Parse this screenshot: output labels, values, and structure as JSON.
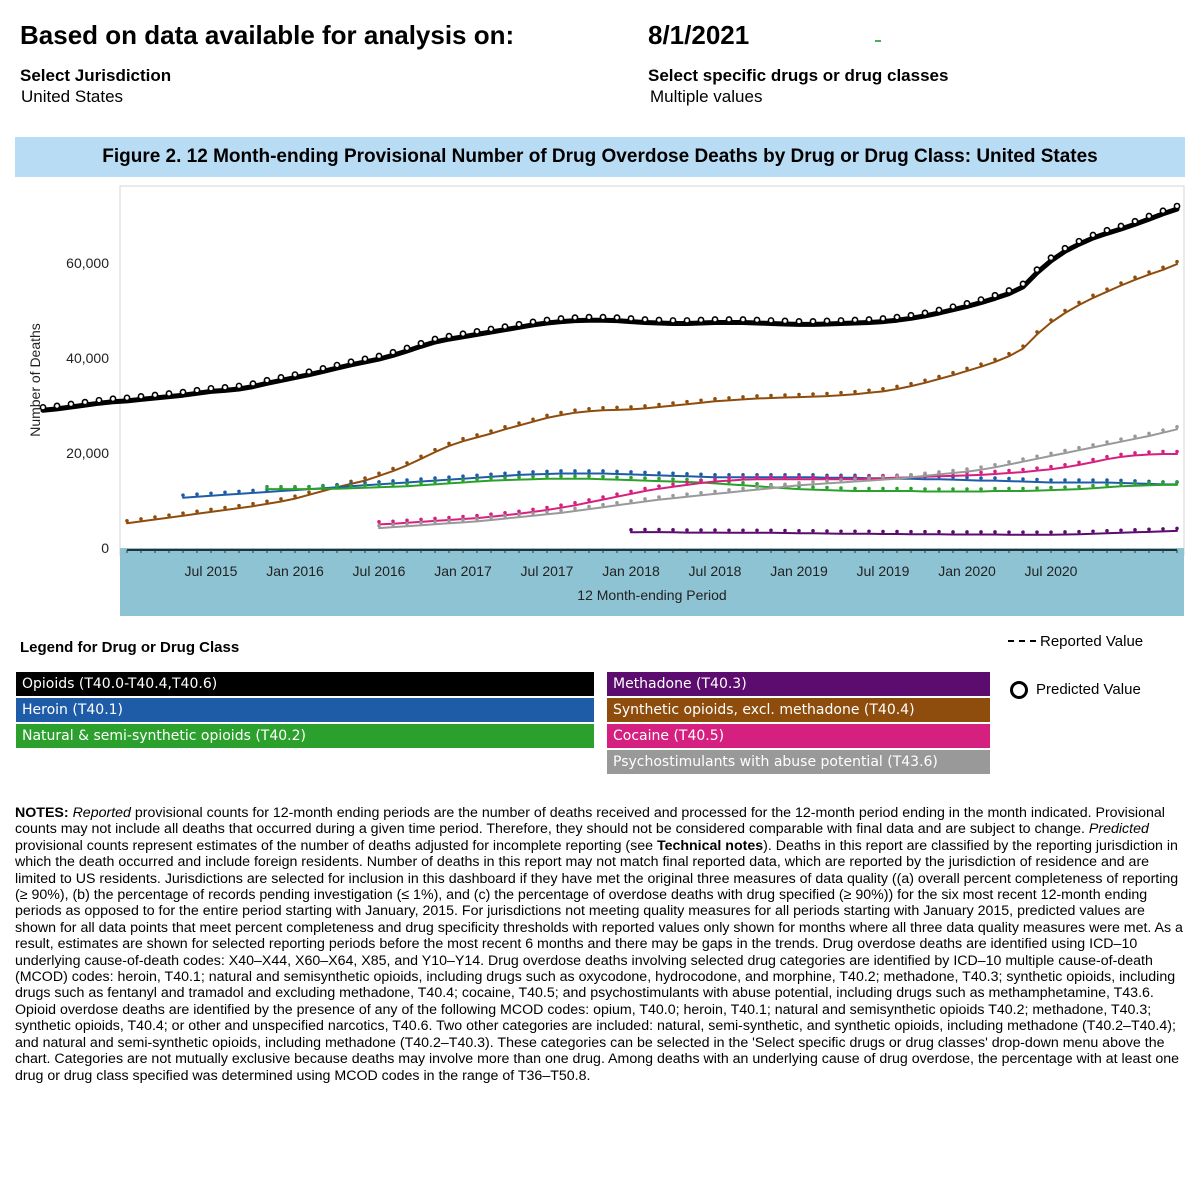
{
  "header": {
    "based_on_label": "Based on data available for analysis on:",
    "date": "8/1/2021",
    "jurisdiction_label": "Select Jurisdiction",
    "jurisdiction_value": "United States",
    "drugs_label": "Select specific drugs or drug classes",
    "drugs_value": "Multiple values"
  },
  "figure_title": "Figure 2. 12 Month-ending Provisional Number of Drug Overdose Deaths by Drug or Drug Class: United States",
  "chart_data": {
    "type": "line",
    "title": "Figure 2. 12 Month-ending Provisional Number of Drug Overdose Deaths by Drug or Drug Class: United States",
    "xlabel": "12 Month-ending Period",
    "ylabel": "Number of Deaths",
    "x_tick_labels": [
      "Jul 2015",
      "Jan 2016",
      "Jul 2016",
      "Jan 2017",
      "Jul 2017",
      "Jan 2018",
      "Jul 2018",
      "Jan 2019",
      "Jul 2019",
      "Jan 2020",
      "Jul 2020"
    ],
    "y_ticks": [
      0,
      20000,
      40000,
      60000
    ],
    "y_tick_labels": [
      "0",
      "20,000",
      "40,000",
      "60,000"
    ],
    "ylim": [
      0,
      75000
    ],
    "x_range": [
      "Jan 2015",
      "Mar 2021"
    ],
    "grid": false,
    "series": [
      {
        "name": "Opioids (T40.0-T40.4,T40.6)",
        "color": "#000000",
        "values": [
          29000,
          29300,
          29700,
          30100,
          30500,
          30800,
          31000,
          31300,
          31600,
          31900,
          32200,
          32600,
          33000,
          33200,
          33500,
          34000,
          34700,
          35300,
          35900,
          36500,
          37200,
          37900,
          38600,
          39200,
          39800,
          40600,
          41500,
          42500,
          43400,
          44000,
          44500,
          45000,
          45500,
          46000,
          46500,
          47000,
          47400,
          47700,
          47900,
          48000,
          48000,
          47900,
          47700,
          47500,
          47400,
          47300,
          47300,
          47400,
          47500,
          47500,
          47500,
          47400,
          47300,
          47200,
          47100,
          47100,
          47200,
          47300,
          47400,
          47500,
          47700,
          48000,
          48400,
          48900,
          49500,
          50200,
          50900,
          51700,
          52600,
          53600,
          55000,
          58000,
          60500,
          62500,
          64000,
          65300,
          66300,
          67200,
          68200,
          69300,
          70400,
          71400
        ]
      },
      {
        "name": "Synthetic opioids, excl. methadone (T40.4)",
        "color": "#8f4d0d",
        "values": [
          5200,
          5600,
          6000,
          6400,
          6800,
          7200,
          7600,
          8000,
          8400,
          8800,
          9300,
          9800,
          10400,
          11200,
          12000,
          12800,
          13500,
          14200,
          15200,
          16200,
          17400,
          18800,
          20200,
          21500,
          22500,
          23300,
          24100,
          25000,
          25800,
          26600,
          27400,
          28000,
          28500,
          28800,
          29000,
          29100,
          29200,
          29400,
          29700,
          30000,
          30300,
          30600,
          30900,
          31100,
          31300,
          31500,
          31600,
          31700,
          31800,
          31900,
          32000,
          32200,
          32400,
          32700,
          33000,
          33500,
          34100,
          34800,
          35600,
          36400,
          37300,
          38200,
          39200,
          40400,
          42000,
          45000,
          47500,
          49500,
          51200,
          52700,
          54000,
          55300,
          56500,
          57600,
          58600,
          59800
        ]
      },
      {
        "name": "Heroin (T40.1)",
        "color": "#1f5ca8",
        "values": [
          10600,
          10800,
          11000,
          11200,
          11400,
          11600,
          11800,
          12000,
          12200,
          12400,
          12600,
          12800,
          13000,
          13200,
          13400,
          13600,
          13800,
          14000,
          14200,
          14400,
          14600,
          14800,
          15000,
          15200,
          15400,
          15500,
          15600,
          15700,
          15700,
          15700,
          15700,
          15600,
          15500,
          15400,
          15300,
          15200,
          15100,
          15000,
          14900,
          14900,
          14900,
          14900,
          14900,
          14900,
          14900,
          14900,
          14800,
          14800,
          14800,
          14700,
          14700,
          14600,
          14600,
          14500,
          14500,
          14400,
          14300,
          14200,
          14200,
          14100,
          14000,
          13900,
          13800,
          13800,
          13800,
          13800,
          13800,
          13700,
          13600,
          13500,
          13400,
          13400
        ]
      },
      {
        "name": "Natural & semi-synthetic opioids (T40.2)",
        "color": "#2ca02c",
        "values": [
          12400,
          12400,
          12400,
          12400,
          12500,
          12500,
          12600,
          12700,
          12800,
          12900,
          13000,
          13200,
          13400,
          13600,
          13800,
          14000,
          14200,
          14300,
          14400,
          14500,
          14600,
          14600,
          14600,
          14600,
          14500,
          14400,
          14300,
          14200,
          14100,
          14000,
          13900,
          13800,
          13600,
          13400,
          13200,
          13000,
          12800,
          12600,
          12400,
          12300,
          12200,
          12100,
          12000,
          12000,
          12000,
          12000,
          12000,
          11900,
          11900,
          11900,
          11900,
          11900,
          12000,
          12000,
          12000,
          12100,
          12200,
          12300,
          12400,
          12600,
          12800,
          13000,
          13100,
          13200,
          13300,
          13300
        ]
      },
      {
        "name": "Cocaine (T40.5)",
        "color": "#d6207f",
        "values": [
          5000,
          5100,
          5300,
          5500,
          5700,
          5900,
          6100,
          6300,
          6600,
          6900,
          7200,
          7600,
          8000,
          8500,
          9000,
          9600,
          10200,
          10800,
          11400,
          12000,
          12500,
          12900,
          13300,
          13700,
          14000,
          14200,
          14400,
          14500,
          14500,
          14500,
          14500,
          14500,
          14500,
          14500,
          14500,
          14600,
          14700,
          14800,
          14900,
          15000,
          15100,
          15200,
          15300,
          15400,
          15600,
          15800,
          16000,
          16300,
          16600,
          17000,
          17500,
          18100,
          18700,
          19200,
          19500,
          19700,
          19800,
          19800
        ]
      },
      {
        "name": "Psychostimulants with abuse potential (T43.6)",
        "color": "#999999",
        "values": [
          4200,
          4400,
          4600,
          4800,
          5000,
          5200,
          5400,
          5600,
          5900,
          6200,
          6500,
          6800,
          7100,
          7400,
          7800,
          8200,
          8600,
          9000,
          9400,
          9800,
          10200,
          10500,
          10800,
          11100,
          11400,
          11700,
          12000,
          12300,
          12600,
          12900,
          13200,
          13400,
          13600,
          13800,
          14000,
          14200,
          14400,
          14600,
          14900,
          15200,
          15500,
          15800,
          16100,
          16500,
          17000,
          17600,
          18200,
          18800,
          19400,
          20000,
          20600,
          21200,
          21800,
          22400,
          23000,
          23600,
          24300,
          25000
        ]
      },
      {
        "name": "Methadone (T40.3)",
        "color": "#5c0b6e",
        "values": [
          3300,
          3350,
          3350,
          3300,
          3250,
          3250,
          3250,
          3200,
          3200,
          3200,
          3200,
          3150,
          3100,
          3100,
          3050,
          3000,
          3000,
          3000,
          2950,
          2950,
          2900,
          2900,
          2900,
          2850,
          2850,
          2850,
          2850,
          2800,
          2800,
          2800,
          2800,
          2850,
          2900,
          3000,
          3100,
          3200,
          3300,
          3400,
          3500,
          3600
        ]
      }
    ]
  },
  "legend": {
    "title": "Legend for Drug or Drug Class",
    "items_left": [
      {
        "label": "Opioids (T40.0-T40.4,T40.6)",
        "color": "#000000"
      },
      {
        "label": "Heroin (T40.1)",
        "color": "#1f5ca8"
      },
      {
        "label": "Natural & semi-synthetic opioids (T40.2)",
        "color": "#2ca02c"
      }
    ],
    "items_right": [
      {
        "label": "Methadone (T40.3)",
        "color": "#5c0b6e"
      },
      {
        "label": "Synthetic opioids, excl. methadone (T40.4)",
        "color": "#8f4d0d"
      },
      {
        "label": "Cocaine (T40.5)",
        "color": "#d6207f"
      },
      {
        "label": "Psychostimulants with abuse potential (T43.6)",
        "color": "#999999"
      }
    ],
    "reported_label": "Reported Value",
    "predicted_label": "Predicted Value"
  },
  "notes": {
    "p1_bold": "NOTES:",
    "p2_ital": "Reported",
    "p3": " provisional counts for 12-month ending periods are the number of deaths received and processed for the 12-month period ending in the month indicated. Provisional counts may not include all deaths that occurred during a given time period. Therefore, they should not be considered comparable with final data and are subject to change. ",
    "p4_ital": "Predicted",
    "p5": " provisional counts represent estimates of the number of deaths adjusted for incomplete reporting (see ",
    "p6_bold": "Technical notes",
    "p7": "). Deaths in this report are classified by the reporting jurisdiction in which the death occurred and include foreign residents. Number of deaths in this report may not match final reported data, which are reported by the jurisdiction of residence and are limited to US residents. Jurisdictions are selected for inclusion in this dashboard if they have met the original three measures of data quality ((a) overall percent completeness of reporting (≥ 90%), (b) the percentage of records pending investigation (≤ 1%), and (c) the percentage of overdose deaths with drug specified (≥ 90%)) for the six most recent 12-month ending periods as opposed to for the entire period starting with January, 2015. For jurisdictions not meeting quality measures for all periods starting with January 2015, predicted values are shown for all data points that meet percent completeness and drug specificity thresholds with reported values only shown for months where all three data quality measures were met.  As a result, estimates are shown for selected reporting periods before the most recent 6 months and there may be gaps in the trends. Drug overdose deaths are identified using ICD–10 underlying cause-of-death codes: X40–X44, X60–X64, X85, and Y10–Y14. Drug overdose deaths involving selected drug categories are identified by ICD–10 multiple cause-of-death (MCOD) codes: heroin, T40.1; natural and semisynthetic opioids, including drugs such as oxycodone, hydrocodone, and morphine, T40.2; methadone, T40.3; synthetic opioids, including drugs such as fentanyl and tramadol and excluding methadone, T40.4; cocaine, T40.5; and psychostimulants with abuse potential, including drugs such as methamphetamine, T43.6. Opioid overdose deaths are identified by the presence of any of the following MCOD codes: opium, T40.0; heroin, T40.1; natural and semisynthetic opioids T40.2; methadone, T40.3; synthetic opioids, T40.4; or other and unspecified narcotics, T40.6. Two other categories are included: natural, semi-synthetic, and synthetic opioids, including methadone (T40.2–T40.4); and natural and semi-synthetic opioids, including methadone (T40.2–T40.3). These categories can be selected in the 'Select specific drugs or drug classes' drop-down menu above the chart. Categories are not mutually exclusive because deaths may involve more than one drug. Among deaths with an underlying cause of drug overdose, the percentage with at least one drug or drug class specified was determined using MCOD codes in the range of T36–T50.8."
  }
}
